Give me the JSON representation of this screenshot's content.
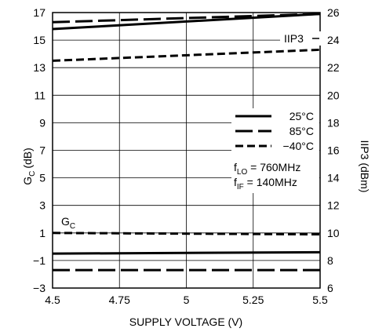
{
  "chart_data": {
    "type": "line",
    "xlabel": "SUPPLY VOLTAGE (V)",
    "ylabel_left": "G",
    "ylabel_left_sub": "C",
    "ylabel_left_unit": "(dB)",
    "ylabel_right": "IIP3 (dBm)",
    "xlim": [
      4.5,
      5.5
    ],
    "ylim_left": [
      -3,
      17
    ],
    "ylim_right": [
      6,
      26
    ],
    "x_ticks": [
      "4.5",
      "4.75",
      "5",
      "5.25",
      "5.5"
    ],
    "y_ticks_left": [
      "17",
      "15",
      "13",
      "11",
      "9",
      "7",
      "5",
      "3",
      "1",
      "−1",
      "−3"
    ],
    "y_ticks_right": [
      "26",
      "24",
      "22",
      "20",
      "18",
      "16",
      "14",
      "12",
      "10",
      "8",
      "6"
    ],
    "grid": true,
    "legend": {
      "placement": "right",
      "entries": [
        {
          "label": "25°C",
          "style": "solid"
        },
        {
          "label": "85°C",
          "style": "long-dash"
        },
        {
          "label": "−40°C",
          "style": "short-dash"
        }
      ]
    },
    "conditions": [
      {
        "main": "f",
        "sub": "LO",
        "rest": " = 760MHz"
      },
      {
        "main": "f",
        "sub": "IF",
        "rest": " = 140MHz"
      }
    ],
    "annotations": {
      "iip3": "IIP3",
      "gc_main": "G",
      "gc_sub": "C"
    },
    "series": [
      {
        "group": "IIP3",
        "axis": "right",
        "style": "solid",
        "x": [
          4.5,
          5.5
        ],
        "y": [
          24.8,
          25.9
        ]
      },
      {
        "group": "IIP3",
        "axis": "right",
        "style": "long-dash",
        "x": [
          4.5,
          5.5
        ],
        "y": [
          25.3,
          25.9
        ]
      },
      {
        "group": "IIP3",
        "axis": "right",
        "style": "short-dash",
        "x": [
          4.5,
          5.5
        ],
        "y": [
          22.5,
          23.3
        ]
      },
      {
        "group": "GC",
        "axis": "left",
        "style": "solid",
        "x": [
          4.5,
          5.5
        ],
        "y": [
          -0.5,
          -0.4
        ]
      },
      {
        "group": "GC",
        "axis": "left",
        "style": "long-dash",
        "x": [
          4.5,
          5.5
        ],
        "y": [
          -1.7,
          -1.7
        ]
      },
      {
        "group": "GC",
        "axis": "left",
        "style": "short-dash",
        "x": [
          4.5,
          5.5
        ],
        "y": [
          1.0,
          0.9
        ]
      }
    ]
  }
}
